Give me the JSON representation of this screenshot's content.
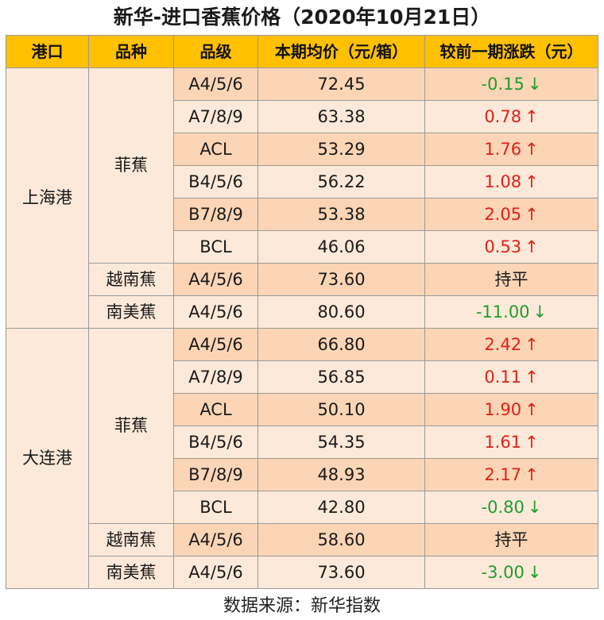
{
  "title": "新华-进口香蕉价格（2020年10月21日）",
  "headers": [
    "港口",
    "品种",
    "品级",
    "本期均价（元/箱）",
    "较前一期涨跌（元）"
  ],
  "ports": [
    {
      "name": "上海港",
      "varieties": [
        {
          "name": "菲蕉",
          "rows": [
            {
              "grade": "A4/5/6",
              "price": "72.45",
              "change": "-0.15",
              "arrow": "↓",
              "trend": "down"
            },
            {
              "grade": "A7/8/9",
              "price": "63.38",
              "change": "0.78",
              "arrow": "↑",
              "trend": "up"
            },
            {
              "grade": "ACL",
              "price": "53.29",
              "change": "1.76",
              "arrow": "↑",
              "trend": "up"
            },
            {
              "grade": "B4/5/6",
              "price": "56.22",
              "change": "1.08",
              "arrow": "↑",
              "trend": "up"
            },
            {
              "grade": "B7/8/9",
              "price": "53.38",
              "change": "2.05",
              "arrow": "↑",
              "trend": "up"
            },
            {
              "grade": "BCL",
              "price": "46.06",
              "change": "0.53",
              "arrow": "↑",
              "trend": "up"
            }
          ]
        },
        {
          "name": "越南蕉",
          "rows": [
            {
              "grade": "A4/5/6",
              "price": "73.60",
              "change": "持平",
              "arrow": "",
              "trend": "flat"
            }
          ]
        },
        {
          "name": "南美蕉",
          "rows": [
            {
              "grade": "A4/5/6",
              "price": "80.60",
              "change": "-11.00",
              "arrow": "↓",
              "trend": "down"
            }
          ]
        }
      ]
    },
    {
      "name": "大连港",
      "varieties": [
        {
          "name": "菲蕉",
          "rows": [
            {
              "grade": "A4/5/6",
              "price": "66.80",
              "change": "2.42",
              "arrow": "↑",
              "trend": "up"
            },
            {
              "grade": "A7/8/9",
              "price": "56.85",
              "change": "0.11",
              "arrow": "↑",
              "trend": "up"
            },
            {
              "grade": "ACL",
              "price": "50.10",
              "change": "1.90",
              "arrow": "↑",
              "trend": "up"
            },
            {
              "grade": "B4/5/6",
              "price": "54.35",
              "change": "1.61",
              "arrow": "↑",
              "trend": "up"
            },
            {
              "grade": "B7/8/9",
              "price": "48.93",
              "change": "2.17",
              "arrow": "↑",
              "trend": "up"
            },
            {
              "grade": "BCL",
              "price": "42.80",
              "change": "-0.80",
              "arrow": "↓",
              "trend": "down"
            }
          ]
        },
        {
          "name": "越南蕉",
          "rows": [
            {
              "grade": "A4/5/6",
              "price": "58.60",
              "change": "持平",
              "arrow": "",
              "trend": "flat"
            }
          ]
        },
        {
          "name": "南美蕉",
          "rows": [
            {
              "grade": "A4/5/6",
              "price": "73.60",
              "change": "-3.00",
              "arrow": "↓",
              "trend": "down"
            }
          ]
        }
      ]
    }
  ],
  "source": "数据来源：新华指数",
  "colors": {
    "header": "#ffc000",
    "row_light": "#fde9d9",
    "row_dark": "#fbd5b5",
    "up": "#e0201a",
    "down": "#1e9e2e"
  }
}
